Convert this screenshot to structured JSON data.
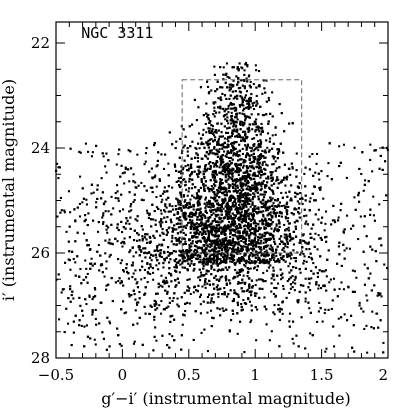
{
  "chart_data": {
    "type": "scatter",
    "title": "",
    "annotation": "NGC 3311",
    "xlabel": "g′−i′ (instrumental magnitude)",
    "ylabel": "i′ (instrumental magnitude)",
    "xlim": [
      -0.5,
      2.0
    ],
    "ylim": [
      28.0,
      21.6
    ],
    "y_inverted": true,
    "x_ticks": [
      -0.5,
      0,
      0.5,
      1,
      1.5,
      2
    ],
    "x_tick_labels": [
      "−0.5",
      "0",
      "0.5",
      "1",
      "1.5",
      "2"
    ],
    "y_ticks": [
      22,
      24,
      26,
      28
    ],
    "y_tick_labels": [
      "22",
      "24",
      "26",
      "28"
    ],
    "x_minor_step": 0.1,
    "y_minor_step": 0.5,
    "selection_box": {
      "x_min": 0.45,
      "x_max": 1.35,
      "y_bright": 22.7,
      "y_faint": 26.0,
      "style": "dashed"
    },
    "marker_color": "#000000",
    "grid": false,
    "point_count": 7000,
    "distribution_note": "dense cloud of point sources; main concentration at g′−i′ ≈ 0.7–1.1, i′ ≈ 23–26; broad faint scatter across colors at i′ > 24.5"
  }
}
